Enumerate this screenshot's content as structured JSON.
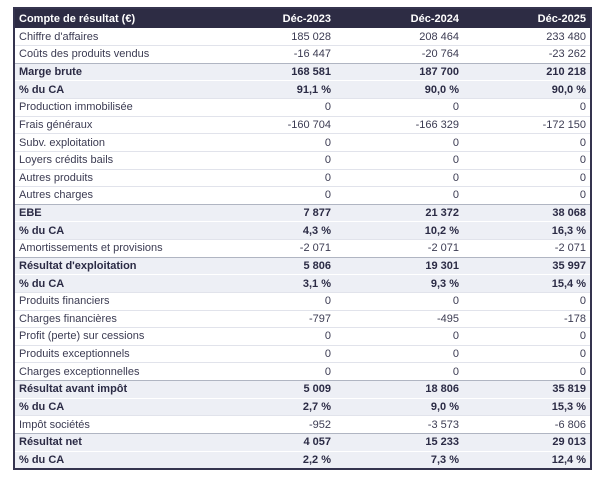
{
  "table": {
    "title": "Compte de résultat (€)",
    "columns": [
      "Déc-2023",
      "Déc-2024",
      "Déc-2025"
    ],
    "rows": [
      {
        "label": "Chiffre d'affaires",
        "values": [
          "185 028",
          "208 464",
          "233 480"
        ],
        "emphasis": false
      },
      {
        "label": "Coûts des produits vendus",
        "values": [
          "-16 447",
          "-20 764",
          "-23 262"
        ],
        "emphasis": false
      },
      {
        "label": "Marge brute",
        "values": [
          "168 581",
          "187 700",
          "210 218"
        ],
        "emphasis": true
      },
      {
        "label": "% du CA",
        "values": [
          "91,1 %",
          "90,0 %",
          "90,0 %"
        ],
        "emphasis": true
      },
      {
        "label": "Production immobilisée",
        "values": [
          "0",
          "0",
          "0"
        ],
        "emphasis": false
      },
      {
        "label": "Frais généraux",
        "values": [
          "-160 704",
          "-166 329",
          "-172 150"
        ],
        "emphasis": false
      },
      {
        "label": "Subv. exploitation",
        "values": [
          "0",
          "0",
          "0"
        ],
        "emphasis": false
      },
      {
        "label": "Loyers crédits bails",
        "values": [
          "0",
          "0",
          "0"
        ],
        "emphasis": false
      },
      {
        "label": "Autres produits",
        "values": [
          "0",
          "0",
          "0"
        ],
        "emphasis": false
      },
      {
        "label": "Autres charges",
        "values": [
          "0",
          "0",
          "0"
        ],
        "emphasis": false
      },
      {
        "label": "EBE",
        "values": [
          "7 877",
          "21 372",
          "38 068"
        ],
        "emphasis": true
      },
      {
        "label": "% du CA",
        "values": [
          "4,3 %",
          "10,2 %",
          "16,3 %"
        ],
        "emphasis": true
      },
      {
        "label": "Amortissements et provisions",
        "values": [
          "-2 071",
          "-2 071",
          "-2 071"
        ],
        "emphasis": false
      },
      {
        "label": "Résultat d'exploitation",
        "values": [
          "5 806",
          "19 301",
          "35 997"
        ],
        "emphasis": true
      },
      {
        "label": "% du CA",
        "values": [
          "3,1 %",
          "9,3 %",
          "15,4 %"
        ],
        "emphasis": true
      },
      {
        "label": "Produits financiers",
        "values": [
          "0",
          "0",
          "0"
        ],
        "emphasis": false
      },
      {
        "label": "Charges financières",
        "values": [
          "-797",
          "-495",
          "-178"
        ],
        "emphasis": false
      },
      {
        "label": "Profit (perte) sur cessions",
        "values": [
          "0",
          "0",
          "0"
        ],
        "emphasis": false
      },
      {
        "label": "Produits exceptionnels",
        "values": [
          "0",
          "0",
          "0"
        ],
        "emphasis": false
      },
      {
        "label": "Charges exceptionnelles",
        "values": [
          "0",
          "0",
          "0"
        ],
        "emphasis": false
      },
      {
        "label": "Résultat avant impôt",
        "values": [
          "5 009",
          "18 806",
          "35 819"
        ],
        "emphasis": true
      },
      {
        "label": "% du CA",
        "values": [
          "2,7 %",
          "9,0 %",
          "15,3 %"
        ],
        "emphasis": true
      },
      {
        "label": "Impôt sociétés",
        "values": [
          "-952",
          "-3 573",
          "-6 806"
        ],
        "emphasis": false
      },
      {
        "label": "Résultat net",
        "values": [
          "4 057",
          "15 233",
          "29 013"
        ],
        "emphasis": true
      },
      {
        "label": "% du CA",
        "values": [
          "2,2 %",
          "7,3 %",
          "12,4 %"
        ],
        "emphasis": true
      }
    ]
  },
  "colors": {
    "header_bg": "#2d2c44",
    "header_text": "#ffffff",
    "emphasis_row_bg": "#edeff5",
    "text": "#3b3b52",
    "emphasis_text": "#2b2b45",
    "outer_border": "#35344f",
    "row_border": "#e1e3eb"
  }
}
